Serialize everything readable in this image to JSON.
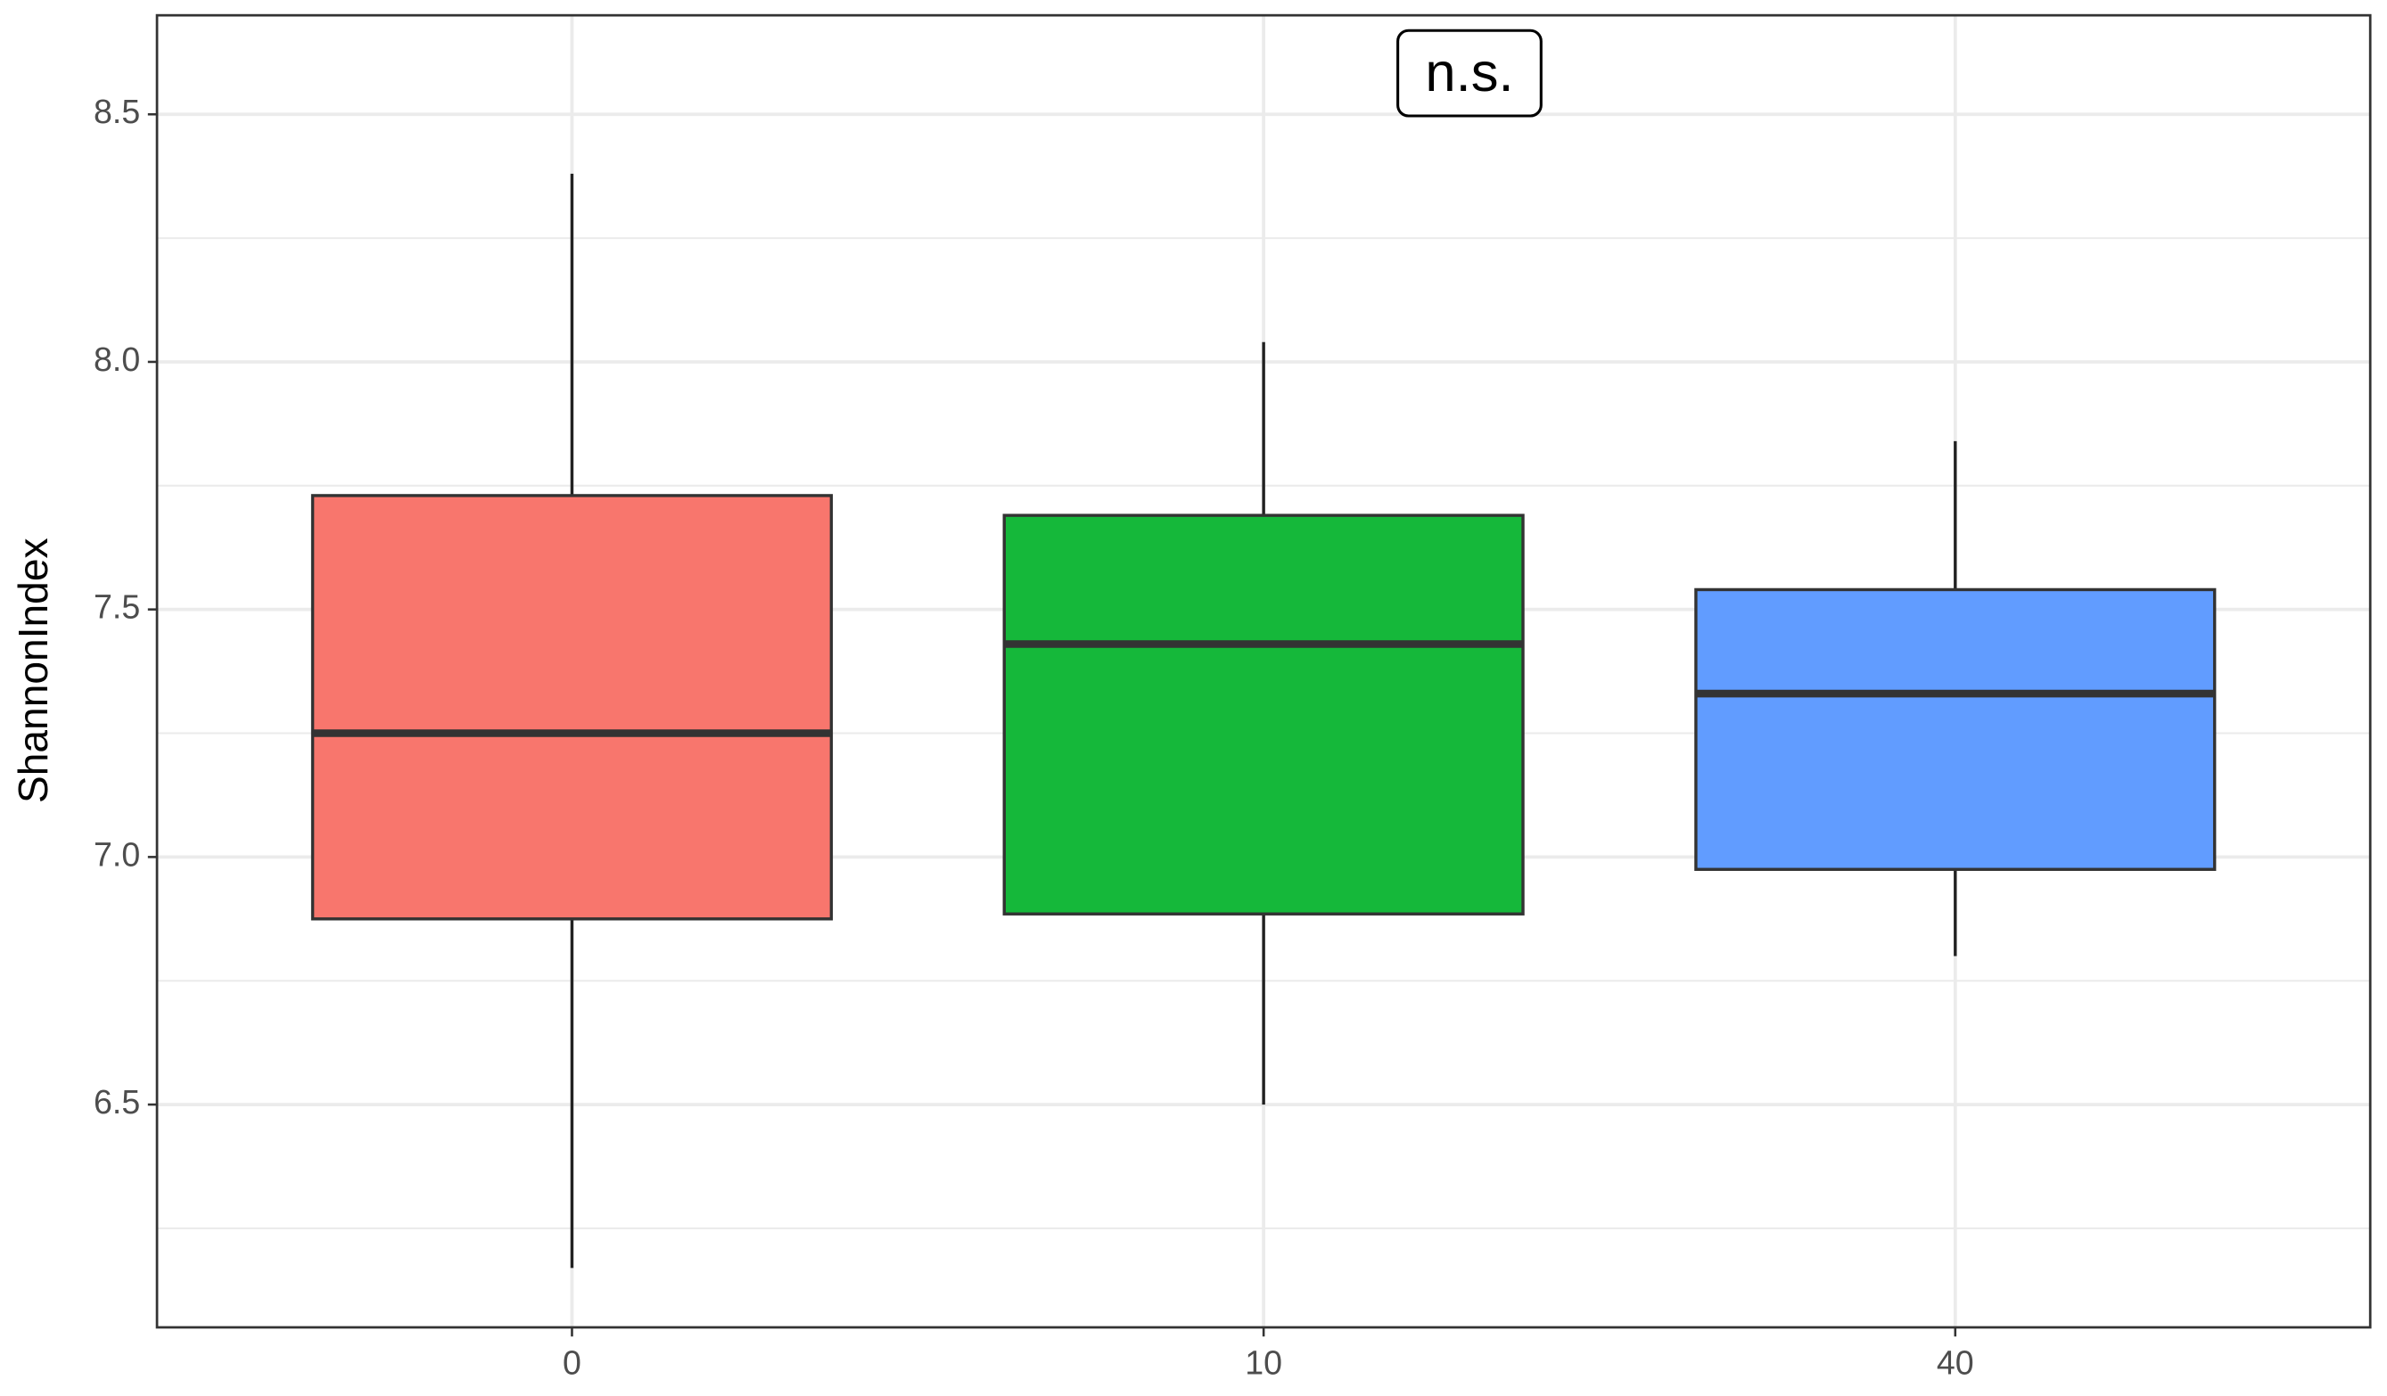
{
  "chart_data": {
    "type": "box",
    "y_label": "ShannonIndex",
    "annotation": "n.s.",
    "categories": [
      "0",
      "10",
      "40"
    ],
    "boxes": [
      {
        "low": 6.17,
        "q1": 6.875,
        "median": 7.25,
        "q3": 7.73,
        "high": 8.38,
        "color": "#F8766D"
      },
      {
        "low": 6.5,
        "q1": 6.885,
        "median": 7.43,
        "q3": 7.69,
        "high": 8.04,
        "color": "#15B83A"
      },
      {
        "low": 6.8,
        "q1": 6.975,
        "median": 7.33,
        "q3": 7.54,
        "high": 7.84,
        "color": "#619CFF"
      }
    ],
    "ylim": [
      6.05,
      8.7
    ],
    "yticks": [
      6.5,
      {
        "value": 7,
        "label": "7.0"
      },
      7.5,
      {
        "value": 8,
        "label": "8.0"
      },
      8.5
    ],
    "grid": true
  }
}
